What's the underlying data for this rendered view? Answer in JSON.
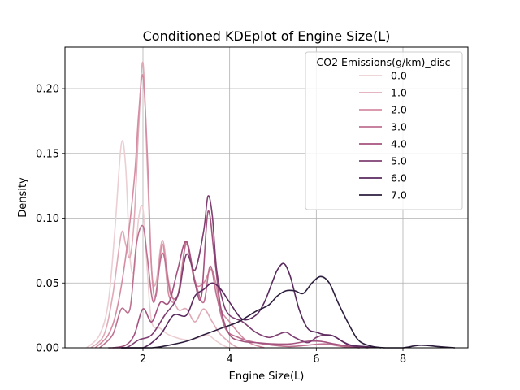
{
  "chart_data": {
    "type": "line",
    "title": "Conditioned KDEplot of Engine Size(L)",
    "xlabel": "Engine Size(L)",
    "ylabel": "Density",
    "xlim": [
      0.2,
      9.5
    ],
    "ylim": [
      0,
      0.232
    ],
    "xticks": [
      2,
      4,
      6,
      8
    ],
    "xtick_labels": [
      "2",
      "4",
      "6",
      "8"
    ],
    "yticks": [
      0,
      0.05,
      0.1,
      0.15,
      0.2
    ],
    "ytick_labels": [
      "0.00",
      "0.05",
      "0.10",
      "0.15",
      "0.20"
    ],
    "grid": true,
    "legend": {
      "title": "CO2 Emissions(g/km)_disc",
      "placement": "top-right"
    },
    "series": [
      {
        "name": "0.0",
        "color": "#ebcfd3",
        "x": [
          0.7,
          1.0,
          1.2,
          1.35,
          1.5,
          1.6,
          1.7,
          1.8,
          1.9,
          2.0,
          2.1,
          2.2,
          2.4,
          2.6,
          3.0,
          3.3,
          3.5,
          3.7,
          4.0,
          4.5
        ],
        "y": [
          0.0,
          0.01,
          0.035,
          0.09,
          0.157,
          0.14,
          0.07,
          0.06,
          0.1,
          0.107,
          0.06,
          0.02,
          0.015,
          0.01,
          0.006,
          0.008,
          0.01,
          0.005,
          0.0,
          0.0
        ]
      },
      {
        "name": "1.0",
        "color": "#e0aab7",
        "x": [
          0.8,
          1.1,
          1.3,
          1.5,
          1.6,
          1.7,
          1.8,
          1.9,
          2.0,
          2.1,
          2.2,
          2.3,
          2.45,
          2.6,
          2.8,
          3.0,
          3.2,
          3.4,
          3.6,
          3.8,
          4.2,
          4.6
        ],
        "y": [
          0.0,
          0.01,
          0.04,
          0.088,
          0.08,
          0.07,
          0.1,
          0.17,
          0.22,
          0.14,
          0.06,
          0.05,
          0.083,
          0.05,
          0.03,
          0.03,
          0.02,
          0.03,
          0.02,
          0.01,
          0.0,
          0.0
        ]
      },
      {
        "name": "2.0",
        "color": "#d48da2",
        "x": [
          0.9,
          1.2,
          1.4,
          1.6,
          1.8,
          1.9,
          2.0,
          2.1,
          2.2,
          2.3,
          2.45,
          2.6,
          2.8,
          3.0,
          3.2,
          3.4,
          3.6,
          3.8,
          4.0,
          4.4,
          4.8
        ],
        "y": [
          0.0,
          0.01,
          0.03,
          0.07,
          0.13,
          0.18,
          0.21,
          0.15,
          0.06,
          0.04,
          0.08,
          0.04,
          0.04,
          0.08,
          0.05,
          0.05,
          0.06,
          0.03,
          0.02,
          0.005,
          0.0
        ]
      },
      {
        "name": "3.0",
        "color": "#be7190",
        "x": [
          1.0,
          1.3,
          1.5,
          1.7,
          1.85,
          2.0,
          2.1,
          2.25,
          2.45,
          2.65,
          2.85,
          3.0,
          3.2,
          3.4,
          3.55,
          3.7,
          3.9,
          4.2,
          4.6,
          5.0,
          5.4,
          5.8,
          6.2,
          6.6,
          7.0
        ],
        "y": [
          0.0,
          0.01,
          0.03,
          0.03,
          0.08,
          0.094,
          0.07,
          0.035,
          0.073,
          0.04,
          0.045,
          0.082,
          0.052,
          0.035,
          0.063,
          0.04,
          0.015,
          0.008,
          0.004,
          0.002,
          0.001,
          0.002,
          0.003,
          0.001,
          0.0
        ]
      },
      {
        "name": "4.0",
        "color": "#a4537f",
        "x": [
          1.3,
          1.6,
          1.8,
          2.0,
          2.2,
          2.4,
          2.6,
          2.8,
          3.0,
          3.2,
          3.35,
          3.5,
          3.65,
          3.8,
          4.0,
          4.3,
          4.6,
          5.0,
          5.4,
          5.8,
          6.1,
          6.4,
          6.8,
          7.2
        ],
        "y": [
          0.0,
          0.002,
          0.01,
          0.03,
          0.02,
          0.035,
          0.035,
          0.06,
          0.082,
          0.05,
          0.04,
          0.105,
          0.07,
          0.03,
          0.01,
          0.005,
          0.004,
          0.003,
          0.003,
          0.005,
          0.005,
          0.003,
          0.001,
          0.0
        ]
      },
      {
        "name": "5.0",
        "color": "#7f3f72",
        "x": [
          1.2,
          1.6,
          1.9,
          2.2,
          2.5,
          2.8,
          3.0,
          3.2,
          3.4,
          3.5,
          3.6,
          3.7,
          3.85,
          4.0,
          4.3,
          4.6,
          4.9,
          5.1,
          5.3,
          5.5,
          5.8,
          6.0,
          6.2,
          6.4,
          6.7,
          7.0
        ],
        "y": [
          0.0,
          0.0,
          0.006,
          0.01,
          0.025,
          0.04,
          0.072,
          0.06,
          0.09,
          0.117,
          0.102,
          0.06,
          0.035,
          0.025,
          0.02,
          0.012,
          0.008,
          0.01,
          0.012,
          0.008,
          0.004,
          0.008,
          0.01,
          0.009,
          0.003,
          0.0
        ]
      },
      {
        "name": "6.0",
        "color": "#5a2a5f",
        "x": [
          1.5,
          2.0,
          2.4,
          2.7,
          3.0,
          3.2,
          3.4,
          3.6,
          3.8,
          4.0,
          4.3,
          4.6,
          4.8,
          5.0,
          5.1,
          5.25,
          5.4,
          5.6,
          5.8,
          6.0,
          6.2,
          6.4,
          6.6,
          6.8,
          7.1,
          7.5
        ],
        "y": [
          0.0,
          0.0,
          0.01,
          0.025,
          0.025,
          0.04,
          0.045,
          0.05,
          0.045,
          0.035,
          0.022,
          0.025,
          0.035,
          0.052,
          0.06,
          0.065,
          0.055,
          0.03,
          0.015,
          0.012,
          0.01,
          0.009,
          0.005,
          0.002,
          0.001,
          0.0
        ]
      },
      {
        "name": "7.0",
        "color": "#2d1e3e",
        "x": [
          1.5,
          2.2,
          2.6,
          3.0,
          3.4,
          3.8,
          4.2,
          4.6,
          4.9,
          5.1,
          5.3,
          5.5,
          5.7,
          5.9,
          6.1,
          6.3,
          6.5,
          6.8,
          7.0,
          7.3,
          7.6,
          8.0,
          8.4,
          8.8,
          9.2
        ],
        "y": [
          0.0,
          0.0,
          0.002,
          0.005,
          0.01,
          0.015,
          0.02,
          0.028,
          0.033,
          0.04,
          0.044,
          0.044,
          0.042,
          0.05,
          0.055,
          0.05,
          0.035,
          0.015,
          0.005,
          0.001,
          0.0,
          0.0,
          0.002,
          0.001,
          0.0
        ]
      }
    ]
  }
}
